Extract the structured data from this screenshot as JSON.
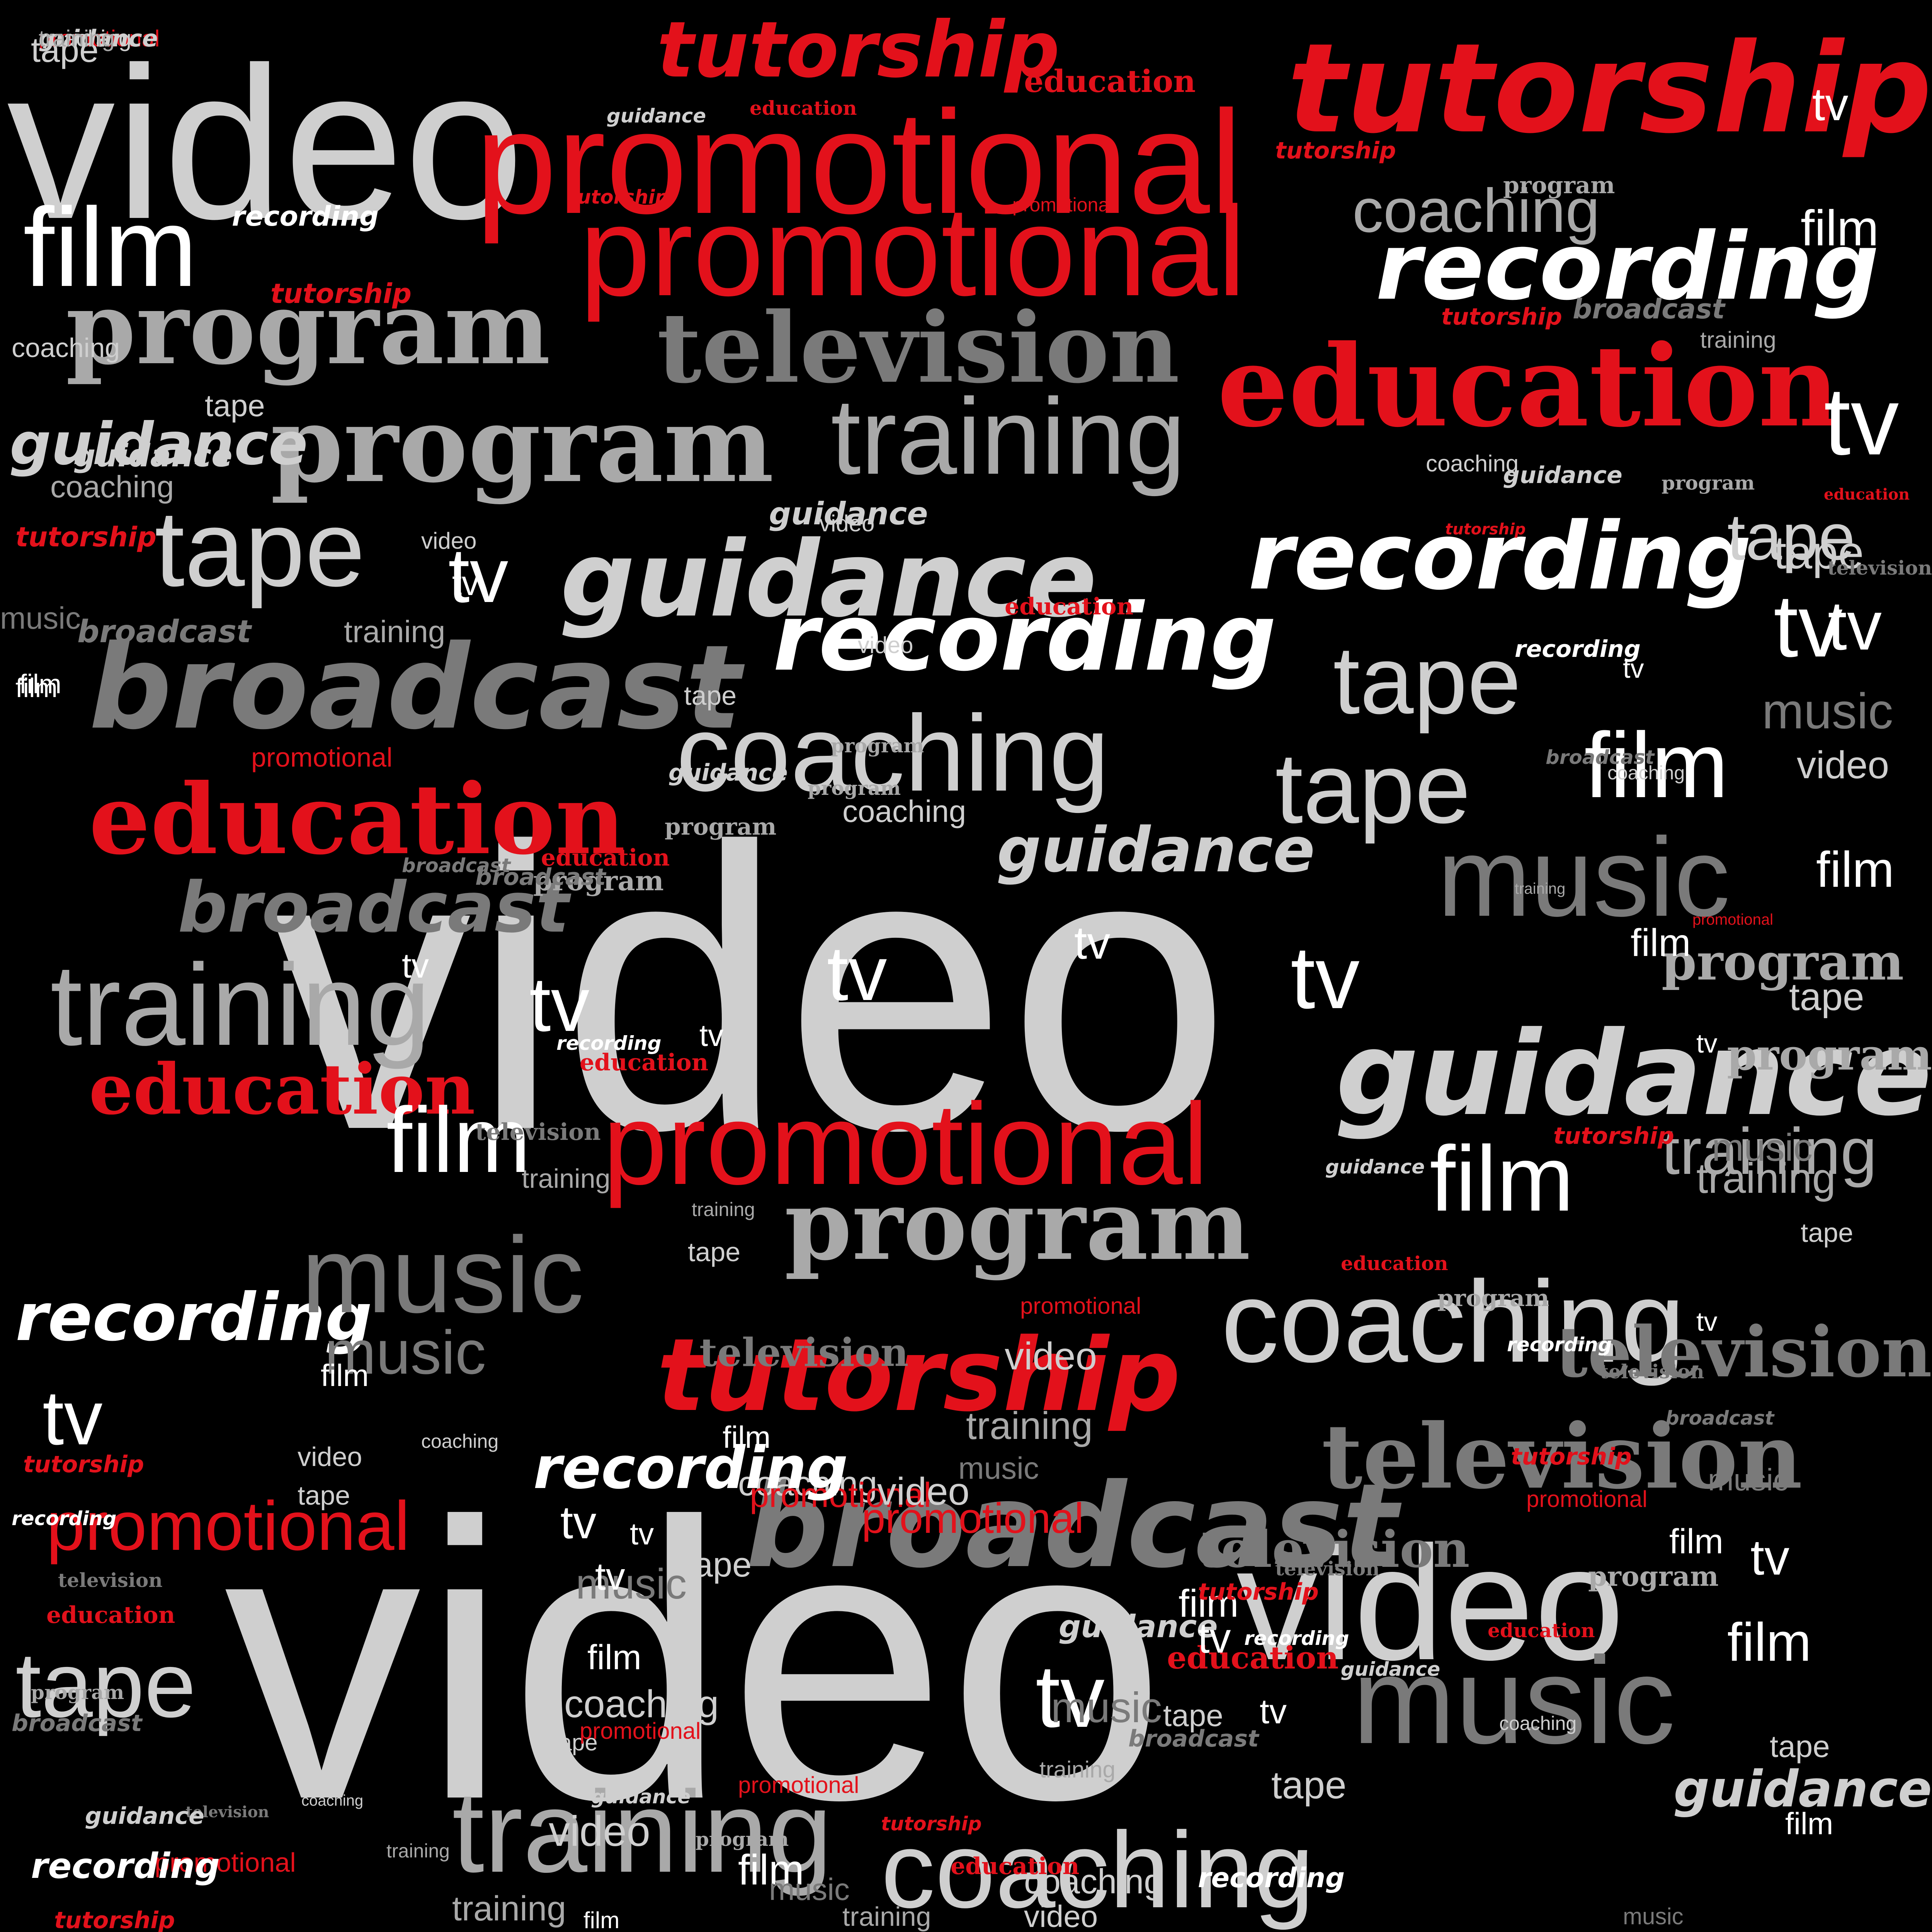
{
  "words": [
    {
      "text": "video",
      "font": "sans",
      "color": "light"
    },
    {
      "text": "video",
      "font": "sans",
      "color": "light"
    },
    {
      "text": "video",
      "font": "sans",
      "color": "light"
    },
    {
      "text": "video",
      "font": "sans",
      "color": "light"
    },
    {
      "text": "promotional",
      "font": "sans",
      "color": "red"
    },
    {
      "text": "promotional",
      "font": "sans",
      "color": "red"
    },
    {
      "text": "promotional",
      "font": "sans",
      "color": "red"
    },
    {
      "text": "promotional",
      "font": "sans",
      "color": "red"
    },
    {
      "text": "tutorship",
      "font": "script",
      "color": "red"
    },
    {
      "text": "tutorship",
      "font": "script",
      "color": "red"
    },
    {
      "text": "tutorship",
      "font": "script",
      "color": "red"
    },
    {
      "text": "recording",
      "font": "script",
      "color": "white"
    },
    {
      "text": "recording",
      "font": "script",
      "color": "white"
    },
    {
      "text": "recording",
      "font": "script",
      "color": "white"
    },
    {
      "text": "recording",
      "font": "script",
      "color": "white"
    },
    {
      "text": "education",
      "font": "serifb",
      "color": "red"
    },
    {
      "text": "education",
      "font": "serifb",
      "color": "red"
    },
    {
      "text": "education",
      "font": "serifb",
      "color": "red"
    },
    {
      "text": "television",
      "font": "serifb",
      "color": "gray"
    },
    {
      "text": "television",
      "font": "serifb",
      "color": "gray"
    },
    {
      "text": "broadcast",
      "font": "script",
      "color": "gray"
    },
    {
      "text": "broadcast",
      "font": "script",
      "color": "gray"
    },
    {
      "text": "broadcast",
      "font": "script",
      "color": "gray"
    },
    {
      "text": "program",
      "font": "serifb",
      "color": "mid"
    },
    {
      "text": "program",
      "font": "serifb",
      "color": "mid"
    },
    {
      "text": "program",
      "font": "serifb",
      "color": "mid"
    },
    {
      "text": "program",
      "font": "serifb",
      "color": "mid"
    },
    {
      "text": "guidance",
      "font": "script",
      "color": "light"
    },
    {
      "text": "guidance",
      "font": "script",
      "color": "light"
    },
    {
      "text": "guidance",
      "font": "script",
      "color": "light"
    },
    {
      "text": "guidance",
      "font": "script",
      "color": "light"
    },
    {
      "text": "training",
      "font": "sans",
      "color": "mid"
    },
    {
      "text": "training",
      "font": "sans",
      "color": "mid"
    },
    {
      "text": "training",
      "font": "sans",
      "color": "mid"
    },
    {
      "text": "training",
      "font": "sans",
      "color": "mid"
    },
    {
      "text": "coaching",
      "font": "sans",
      "color": "light"
    },
    {
      "text": "coaching",
      "font": "sans",
      "color": "light"
    },
    {
      "text": "coaching",
      "font": "sans",
      "color": "light"
    },
    {
      "text": "coaching",
      "font": "sans",
      "color": "mid"
    },
    {
      "text": "music",
      "font": "sans",
      "color": "gray"
    },
    {
      "text": "music",
      "font": "sans",
      "color": "gray"
    },
    {
      "text": "music",
      "font": "sans",
      "color": "gray"
    },
    {
      "text": "music",
      "font": "sans",
      "color": "gray"
    },
    {
      "text": "tape",
      "font": "sans",
      "color": "light"
    },
    {
      "text": "tape",
      "font": "sans",
      "color": "light"
    },
    {
      "text": "tape",
      "font": "sans",
      "color": "light"
    },
    {
      "text": "tape",
      "font": "sans",
      "color": "light"
    },
    {
      "text": "film",
      "font": "sans",
      "color": "white"
    },
    {
      "text": "film",
      "font": "sans",
      "color": "white"
    },
    {
      "text": "film",
      "font": "sans",
      "color": "white"
    },
    {
      "text": "film",
      "font": "sans",
      "color": "white"
    },
    {
      "text": "tv",
      "font": "sans",
      "color": "white"
    },
    {
      "text": "tv",
      "font": "sans",
      "color": "white"
    },
    {
      "text": "tv",
      "font": "sans",
      "color": "white"
    },
    {
      "text": "tv",
      "font": "sans",
      "color": "white"
    },
    {
      "text": "tv",
      "font": "sans",
      "color": "white"
    },
    {
      "text": "tv",
      "font": "sans",
      "color": "white"
    },
    {
      "text": "tv",
      "font": "sans",
      "color": "white"
    },
    {
      "text": "coaching",
      "font": "sans",
      "color": "mid"
    },
    {
      "text": "tape",
      "font": "sans",
      "color": "light"
    },
    {
      "text": "film",
      "font": "sans",
      "color": "white"
    },
    {
      "text": "promotional",
      "font": "sans",
      "color": "red"
    },
    {
      "text": "tutorship",
      "font": "script",
      "color": "red"
    },
    {
      "text": "education",
      "font": "serifb",
      "color": "red"
    },
    {
      "text": "education",
      "font": "serifb",
      "color": "red"
    },
    {
      "text": "broadcast",
      "font": "script",
      "color": "gray"
    },
    {
      "text": "training",
      "font": "sans",
      "color": "mid"
    },
    {
      "text": "program",
      "font": "serifb",
      "color": "mid"
    },
    {
      "text": "guidance",
      "font": "script",
      "color": "light"
    },
    {
      "text": "coaching",
      "font": "sans",
      "color": "light"
    },
    {
      "text": "tape",
      "font": "sans",
      "color": "light"
    },
    {
      "text": "tape",
      "font": "sans",
      "color": "light"
    },
    {
      "text": "guidance",
      "font": "script",
      "color": "light"
    },
    {
      "text": "music",
      "font": "sans",
      "color": "gray"
    },
    {
      "text": "film",
      "font": "sans",
      "color": "white"
    },
    {
      "text": "video",
      "font": "sans",
      "color": "light"
    },
    {
      "text": "tv",
      "font": "sans",
      "color": "white"
    },
    {
      "text": "video",
      "font": "sans",
      "color": "light"
    },
    {
      "text": "coaching",
      "font": "sans",
      "color": "light"
    },
    {
      "text": "program",
      "font": "serifb",
      "color": "mid"
    },
    {
      "text": "education",
      "font": "serifb",
      "color": "red"
    },
    {
      "text": "tv",
      "font": "sans",
      "color": "white"
    },
    {
      "text": "tv",
      "font": "sans",
      "color": "white"
    },
    {
      "text": "tv",
      "font": "sans",
      "color": "white"
    },
    {
      "text": "tv",
      "font": "sans",
      "color": "white"
    },
    {
      "text": "tv",
      "font": "sans",
      "color": "white"
    },
    {
      "text": "tv",
      "font": "sans",
      "color": "white"
    },
    {
      "text": "film",
      "font": "sans",
      "color": "white"
    },
    {
      "text": "tape",
      "font": "sans",
      "color": "light"
    },
    {
      "text": "music",
      "font": "sans",
      "color": "gray"
    },
    {
      "text": "video",
      "font": "sans",
      "color": "light"
    },
    {
      "text": "training",
      "font": "sans",
      "color": "mid"
    },
    {
      "text": "tape",
      "font": "sans",
      "color": "light"
    },
    {
      "text": "tv",
      "font": "sans",
      "color": "white"
    },
    {
      "text": "film",
      "font": "sans",
      "color": "white"
    },
    {
      "text": "tape",
      "font": "sans",
      "color": "light"
    },
    {
      "text": "tv",
      "font": "sans",
      "color": "white"
    },
    {
      "text": "film",
      "font": "sans",
      "color": "white"
    },
    {
      "text": "tape",
      "font": "sans",
      "color": "light"
    },
    {
      "text": "program",
      "font": "serifb",
      "color": "mid"
    },
    {
      "text": "music",
      "font": "sans",
      "color": "gray"
    },
    {
      "text": "training",
      "font": "sans",
      "color": "mid"
    },
    {
      "text": "television",
      "font": "serifb",
      "color": "gray"
    },
    {
      "text": "tv",
      "font": "sans",
      "color": "white"
    },
    {
      "text": "tape",
      "font": "sans",
      "color": "light"
    },
    {
      "text": "music",
      "font": "sans",
      "color": "gray"
    },
    {
      "text": "film",
      "font": "sans",
      "color": "white"
    },
    {
      "text": "tv",
      "font": "sans",
      "color": "white"
    },
    {
      "text": "guidance",
      "font": "script",
      "color": "light"
    },
    {
      "text": "film",
      "font": "sans",
      "color": "white"
    },
    {
      "text": "film",
      "font": "sans",
      "color": "white"
    },
    {
      "text": "tape",
      "font": "sans",
      "color": "light"
    },
    {
      "text": "film",
      "font": "sans",
      "color": "white"
    },
    {
      "text": "coaching",
      "font": "sans",
      "color": "light"
    },
    {
      "text": "promotional",
      "font": "sans",
      "color": "red"
    },
    {
      "text": "television",
      "font": "serifb",
      "color": "gray"
    },
    {
      "text": "video",
      "font": "sans",
      "color": "light"
    },
    {
      "text": "promotional",
      "font": "sans",
      "color": "red"
    },
    {
      "text": "video",
      "font": "sans",
      "color": "light"
    },
    {
      "text": "training",
      "font": "sans",
      "color": "mid"
    },
    {
      "text": "music",
      "font": "sans",
      "color": "gray"
    },
    {
      "text": "guidance",
      "font": "script",
      "color": "light"
    },
    {
      "text": "music",
      "font": "sans",
      "color": "gray"
    },
    {
      "text": "tape",
      "font": "sans",
      "color": "light"
    },
    {
      "text": "education",
      "font": "serifb",
      "color": "red"
    },
    {
      "text": "television",
      "font": "serifb",
      "color": "gray"
    },
    {
      "text": "film",
      "font": "sans",
      "color": "white"
    },
    {
      "text": "tv",
      "font": "sans",
      "color": "white"
    },
    {
      "text": "tv",
      "font": "sans",
      "color": "white"
    },
    {
      "text": "tape",
      "font": "sans",
      "color": "light"
    },
    {
      "text": "film",
      "font": "sans",
      "color": "white"
    },
    {
      "text": "video",
      "font": "sans",
      "color": "light"
    },
    {
      "text": "tape",
      "font": "sans",
      "color": "light"
    },
    {
      "text": "recording",
      "font": "script",
      "color": "white"
    },
    {
      "text": "tv",
      "font": "sans",
      "color": "white"
    },
    {
      "text": "music",
      "font": "sans",
      "color": "gray"
    },
    {
      "text": "film",
      "font": "sans",
      "color": "white"
    },
    {
      "text": "coaching",
      "font": "sans",
      "color": "light"
    },
    {
      "text": "tape",
      "font": "sans",
      "color": "light"
    },
    {
      "text": "tv",
      "font": "sans",
      "color": "white"
    },
    {
      "text": "tape",
      "font": "sans",
      "color": "light"
    },
    {
      "text": "tv",
      "font": "sans",
      "color": "white"
    },
    {
      "text": "video",
      "font": "sans",
      "color": "light"
    },
    {
      "text": "film",
      "font": "sans",
      "color": "white"
    },
    {
      "text": "music",
      "font": "sans",
      "color": "gray"
    },
    {
      "text": "training",
      "font": "sans",
      "color": "mid"
    },
    {
      "text": "video",
      "font": "sans",
      "color": "light"
    },
    {
      "text": "coaching",
      "font": "sans",
      "color": "light"
    },
    {
      "text": "training",
      "font": "sans",
      "color": "mid"
    },
    {
      "text": "film",
      "font": "sans",
      "color": "white"
    },
    {
      "text": "music",
      "font": "sans",
      "color": "gray"
    },
    {
      "text": "video",
      "font": "sans",
      "color": "light"
    },
    {
      "text": "promotional",
      "font": "sans",
      "color": "red"
    },
    {
      "text": "promotional",
      "font": "sans",
      "color": "red"
    },
    {
      "text": "tutorship",
      "font": "script",
      "color": "red"
    },
    {
      "text": "recording",
      "font": "script",
      "color": "white"
    },
    {
      "text": "recording",
      "font": "script",
      "color": "white"
    },
    {
      "text": "guidance",
      "font": "script",
      "color": "light"
    },
    {
      "text": "broadcast",
      "font": "script",
      "color": "gray"
    },
    {
      "text": "broadcast",
      "font": "script",
      "color": "gray"
    },
    {
      "text": "program",
      "font": "serifb",
      "color": "mid"
    },
    {
      "text": "program",
      "font": "serifb",
      "color": "mid"
    },
    {
      "text": "education",
      "font": "serifb",
      "color": "red"
    },
    {
      "text": "television",
      "font": "serifb",
      "color": "gray"
    },
    {
      "text": "training",
      "font": "sans",
      "color": "mid"
    },
    {
      "text": "coaching",
      "font": "sans",
      "color": "light"
    },
    {
      "text": "tutorship",
      "font": "script",
      "color": "red"
    },
    {
      "text": "tutorship",
      "font": "script",
      "color": "red"
    },
    {
      "text": "program",
      "font": "serifb",
      "color": "mid"
    },
    {
      "text": "guidance",
      "font": "script",
      "color": "light"
    },
    {
      "text": "education",
      "font": "serifb",
      "color": "red"
    },
    {
      "text": "promotional",
      "font": "sans",
      "color": "red"
    },
    {
      "text": "tutorship",
      "font": "script",
      "color": "red"
    },
    {
      "text": "broadcast",
      "font": "script",
      "color": "gray"
    },
    {
      "text": "training",
      "font": "sans",
      "color": "mid"
    },
    {
      "text": "coaching",
      "font": "sans",
      "color": "light"
    },
    {
      "text": "guidance",
      "font": "script",
      "color": "light"
    },
    {
      "text": "program",
      "font": "serifb",
      "color": "mid"
    },
    {
      "text": "tutorship",
      "font": "script",
      "color": "red"
    },
    {
      "text": "education",
      "font": "serifb",
      "color": "red"
    },
    {
      "text": "television",
      "font": "serifb",
      "color": "gray"
    },
    {
      "text": "recording",
      "font": "script",
      "color": "white"
    },
    {
      "text": "broadcast",
      "font": "script",
      "color": "gray"
    },
    {
      "text": "promotional",
      "font": "sans",
      "color": "red"
    },
    {
      "text": "coaching",
      "font": "sans",
      "color": "light"
    },
    {
      "text": "training",
      "font": "sans",
      "color": "mid"
    },
    {
      "text": "tutorship",
      "font": "script",
      "color": "red"
    },
    {
      "text": "guidance",
      "font": "script",
      "color": "light"
    },
    {
      "text": "education",
      "font": "serifb",
      "color": "red"
    },
    {
      "text": "program",
      "font": "serifb",
      "color": "mid"
    },
    {
      "text": "recording",
      "font": "script",
      "color": "white"
    },
    {
      "text": "television",
      "font": "serifb",
      "color": "gray"
    },
    {
      "text": "broadcast",
      "font": "script",
      "color": "gray"
    },
    {
      "text": "tutorship",
      "font": "script",
      "color": "red"
    },
    {
      "text": "promotional",
      "font": "sans",
      "color": "red"
    },
    {
      "text": "program",
      "font": "serifb",
      "color": "mid"
    },
    {
      "text": "education",
      "font": "serifb",
      "color": "red"
    },
    {
      "text": "television",
      "font": "serifb",
      "color": "gray"
    },
    {
      "text": "tutorship",
      "font": "script",
      "color": "red"
    },
    {
      "text": "recording",
      "font": "script",
      "color": "white"
    },
    {
      "text": "guidance",
      "font": "script",
      "color": "light"
    },
    {
      "text": "coaching",
      "font": "sans",
      "color": "light"
    },
    {
      "text": "training",
      "font": "sans",
      "color": "mid"
    },
    {
      "text": "broadcast",
      "font": "script",
      "color": "gray"
    },
    {
      "text": "recording",
      "font": "script",
      "color": "white"
    },
    {
      "text": "education",
      "font": "serifb",
      "color": "red"
    },
    {
      "text": "tutorship",
      "font": "script",
      "color": "red"
    },
    {
      "text": "promotional",
      "font": "sans",
      "color": "red"
    },
    {
      "text": "program",
      "font": "serifb",
      "color": "mid"
    },
    {
      "text": "guidance",
      "font": "script",
      "color": "light"
    },
    {
      "text": "training",
      "font": "sans",
      "color": "mid"
    },
    {
      "text": "coaching",
      "font": "sans",
      "color": "light"
    },
    {
      "text": "television",
      "font": "serifb",
      "color": "gray"
    },
    {
      "text": "promotional",
      "font": "sans",
      "color": "red"
    },
    {
      "text": "tutorship",
      "font": "script",
      "color": "red"
    },
    {
      "text": "recording",
      "font": "script",
      "color": "white"
    },
    {
      "text": "guidance",
      "font": "script",
      "color": "light"
    },
    {
      "text": "broadcast",
      "font": "script",
      "color": "gray"
    },
    {
      "text": "program",
      "font": "serifb",
      "color": "mid"
    },
    {
      "text": "education",
      "font": "serifb",
      "color": "red"
    },
    {
      "text": "television",
      "font": "serifb",
      "color": "gray"
    },
    {
      "text": "recording",
      "font": "script",
      "color": "white"
    },
    {
      "text": "tutorship",
      "font": "script",
      "color": "red"
    },
    {
      "text": "promotional",
      "font": "sans",
      "color": "red"
    },
    {
      "text": "guidance",
      "font": "script",
      "color": "light"
    },
    {
      "text": "coaching",
      "font": "sans",
      "color": "light"
    },
    {
      "text": "training",
      "font": "sans",
      "color": "mid"
    }
  ]
}
